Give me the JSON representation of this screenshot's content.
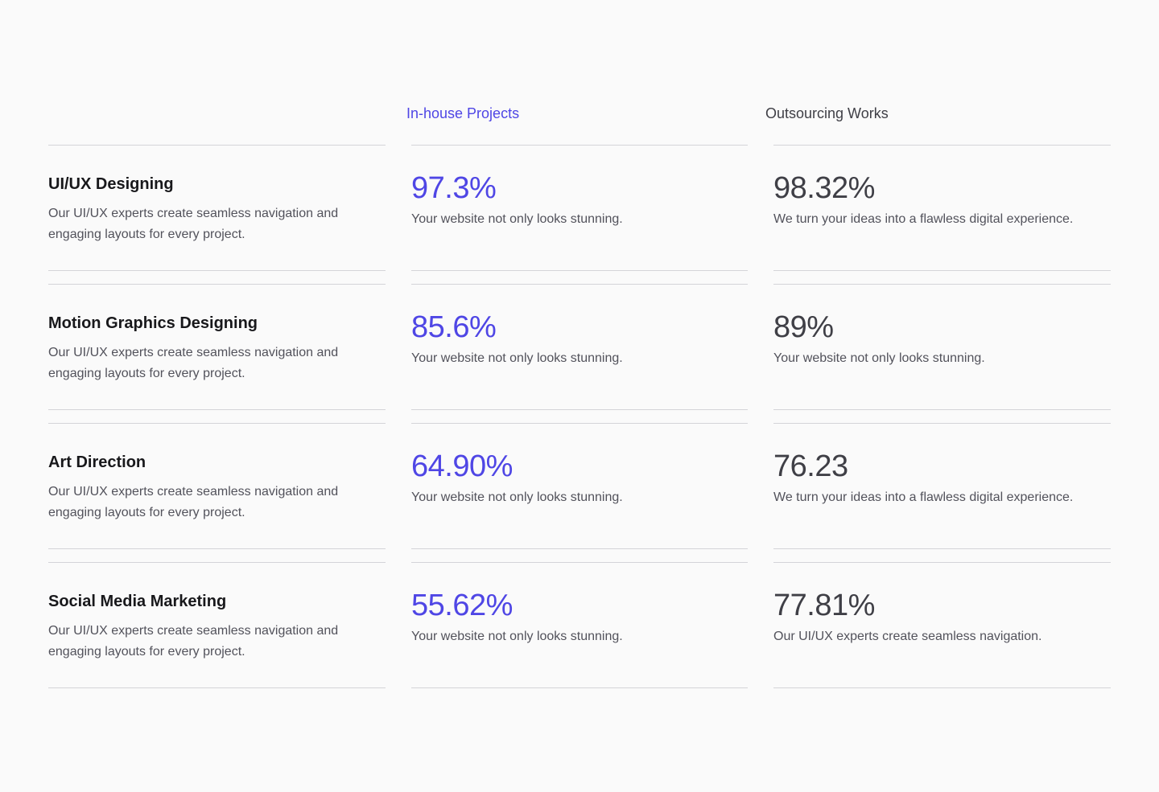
{
  "accent_color": "#4f46e5",
  "neutral_color": "#3f3f46",
  "headers": {
    "inhouse": "In-house Projects",
    "outsourcing": "Outsourcing Works"
  },
  "rows": [
    {
      "title": "UI/UX Designing",
      "description": "Our UI/UX experts create seamless navigation and engaging layouts for every project.",
      "inhouse": {
        "value": "97.3%",
        "desc": "Your website not only looks stunning."
      },
      "outsourcing": {
        "value": "98.32%",
        "desc": "We turn your ideas into a flawless digital experience."
      }
    },
    {
      "title": "Motion Graphics Designing",
      "description": "Our UI/UX experts create seamless navigation and engaging layouts for every project.",
      "inhouse": {
        "value": "85.6%",
        "desc": "Your website not only looks stunning."
      },
      "outsourcing": {
        "value": "89%",
        "desc": "Your website not only looks stunning."
      }
    },
    {
      "title": "Art Direction",
      "description": "Our UI/UX experts create seamless navigation and engaging layouts for every project.",
      "inhouse": {
        "value": "64.90%",
        "desc": "Your website not only looks stunning."
      },
      "outsourcing": {
        "value": "76.23",
        "desc": "We turn your ideas into a flawless digital experience."
      }
    },
    {
      "title": "Social Media Marketing",
      "description": "Our UI/UX experts create seamless navigation and engaging layouts for every project.",
      "inhouse": {
        "value": "55.62%",
        "desc": "Your website not only looks stunning."
      },
      "outsourcing": {
        "value": "77.81%",
        "desc": "Our UI/UX experts create seamless navigation."
      }
    }
  ]
}
